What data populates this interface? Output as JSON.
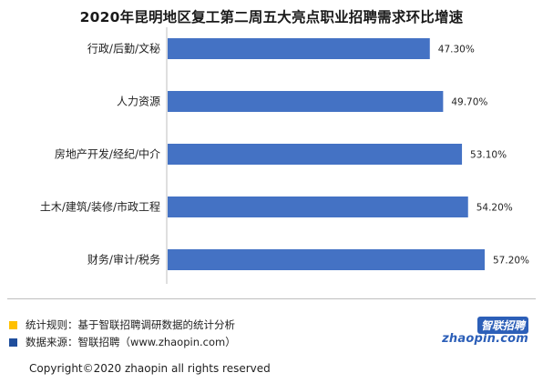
{
  "chart_data": {
    "type": "bar",
    "orientation": "horizontal",
    "title": "2020年昆明地区复工第二周五大亮点职业招聘需求环比增速",
    "categories": [
      "行政/后勤/文秘",
      "人力资源",
      "房地产开发/经纪/中介",
      "土木/建筑/装修/市政工程",
      "财务/审计/税务"
    ],
    "values": [
      47.3,
      49.7,
      53.1,
      54.2,
      57.2
    ],
    "value_labels": [
      "47.30%",
      "49.70%",
      "53.10%",
      "54.20%",
      "57.20%"
    ],
    "xlim": [
      0,
      57.2
    ],
    "grid": false,
    "bar_color": "#4472c4"
  },
  "notes": {
    "rule": "统计规则：基于智联招聘调研数据的统计分析",
    "source": "数据来源：智联招聘（www.zhaopin.com）",
    "rule_color": "#ffc000",
    "source_color": "#1f4e9c"
  },
  "copyright": "Copyright©2020 zhaopin all rights reserved",
  "logo": {
    "cn": "智联招聘",
    "en": "zhaopin.com"
  }
}
